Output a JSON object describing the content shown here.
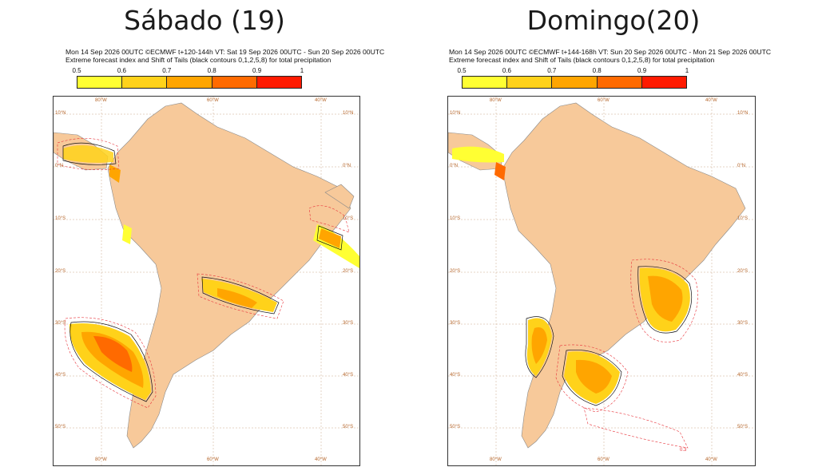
{
  "panels": {
    "left": {
      "title": "Sábado (19)",
      "header_line1": "Mon 14 Sep 2026 00UTC ©ECMWF t+120-144h  VT: Sat 19 Sep 2026 00UTC - Sun 20 Sep 2026 00UTC",
      "header_line2": "Extreme forecast index and Shift of Tails (black contours 0,1,2,5,8) for total precipitation"
    },
    "right": {
      "title": "Domingo(20)",
      "header_line1": "Mon 14 Sep 2026 00UTC ©ECMWF t+144-168h  VT: Sun 20 Sep 2026 00UTC - Mon 21 Sep 2026 00UTC",
      "header_line2": "Extreme forecast index and Shift of Tails (black contours 0,1,2,5,8) for total precipitation"
    }
  },
  "legend": {
    "labels": [
      "0.5",
      "0.6",
      "0.7",
      "0.8",
      "0.9",
      "1"
    ],
    "colors": [
      "#ffff33",
      "#ffd21a",
      "#ffa500",
      "#ff6a00",
      "#ff1a00"
    ]
  },
  "map": {
    "land_color": "#f7c99a",
    "lon_labels": [
      "80°W",
      "60°W",
      "40°W"
    ],
    "lat_labels": [
      "10°N",
      "0°N",
      "10°S",
      "20°S",
      "30°S",
      "40°S",
      "50°S"
    ],
    "contour_label": "0.3"
  }
}
